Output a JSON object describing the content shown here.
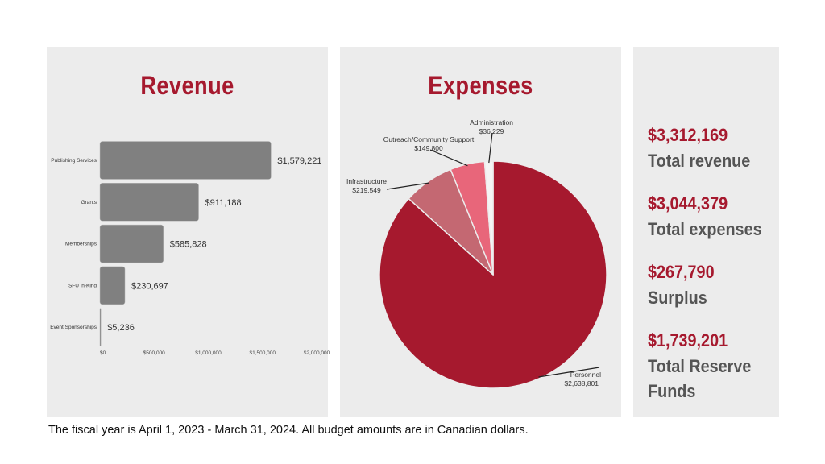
{
  "chart_data": [
    {
      "type": "bar",
      "orientation": "horizontal",
      "title": "Revenue",
      "categories": [
        "Publishing Services",
        "Grants",
        "Memberships",
        "SFU in-Kind",
        "Event Sponsorships"
      ],
      "values": [
        1579221,
        911188,
        585828,
        230697,
        5236
      ],
      "data_labels": [
        "$1,579,221",
        "$911,188",
        "$585,828",
        "$230,697",
        "$5,236"
      ],
      "xlim": [
        0,
        2000000
      ],
      "x_ticks": [
        0,
        500000,
        1000000,
        1500000,
        2000000
      ],
      "x_tick_labels": [
        "$0",
        "$500,000",
        "$1,000,000",
        "$1,500,000",
        "$2,000,000"
      ],
      "grid": false,
      "bar_color": "#808080"
    },
    {
      "type": "pie",
      "title": "Expenses",
      "categories": [
        "Personnel",
        "Infrastructure",
        "Outreach/Community Support",
        "Administration"
      ],
      "values": [
        2638801,
        219549,
        149800,
        36229
      ],
      "data_labels": [
        "$2,638,801",
        "$219,549",
        "$149,800",
        "$36,229"
      ],
      "colors": [
        "#a6192e",
        "#c46872",
        "#e8667a",
        "#f4f4f4"
      ]
    }
  ],
  "summary": [
    {
      "value": "$3,312,169",
      "label": "Total revenue"
    },
    {
      "value": "$3,044,379",
      "label": "Total expenses"
    },
    {
      "value": "$267,790",
      "label": "Surplus"
    },
    {
      "value": "$1,739,201",
      "label": "Total Reserve Funds"
    }
  ],
  "footer": "The fiscal year is April 1, 2023 - March 31, 2024. All budget amounts are in Canadian dollars."
}
